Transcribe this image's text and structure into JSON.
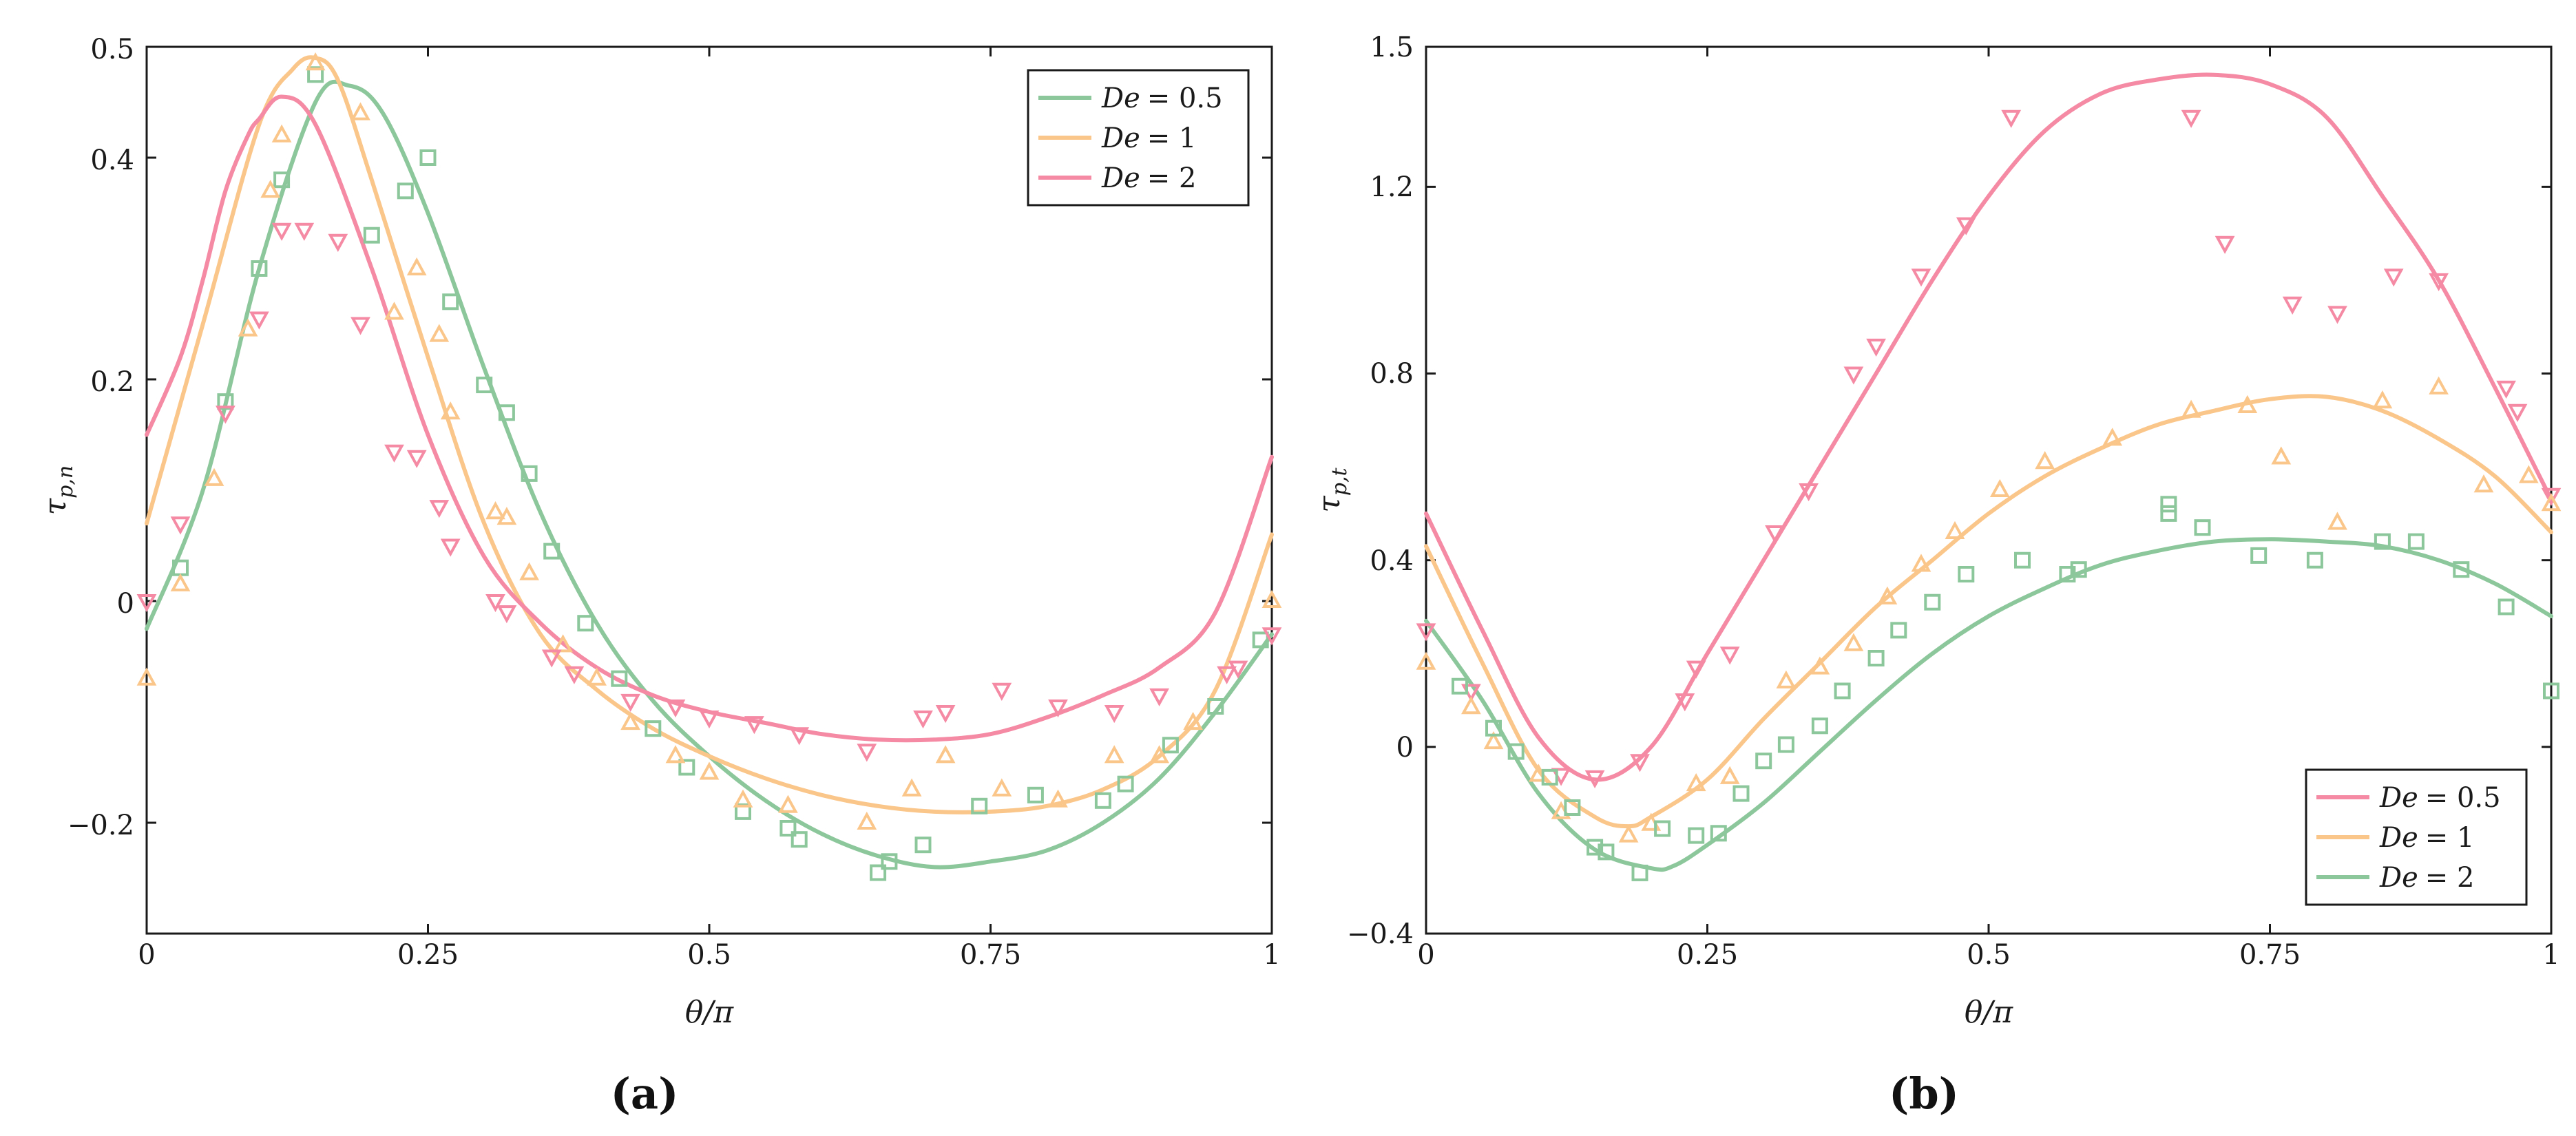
{
  "colors": {
    "green": "#8cc79c",
    "orange": "#fbc68a",
    "pink": "#f48aa4"
  },
  "chart_data": [
    {
      "type": "line",
      "caption": "(a)",
      "xlabel": "θ/π",
      "ylabel": "τ",
      "ylabel_sub": "p,n",
      "xlim": [
        0,
        1
      ],
      "ylim": [
        -0.3,
        0.5
      ],
      "xticks": [
        0,
        0.25,
        0.5,
        0.75,
        1
      ],
      "xtick_labels": [
        "0",
        "0.25",
        "0.5",
        "0.75",
        "1"
      ],
      "yticks": [
        -0.2,
        0,
        0.2,
        0.4,
        0.5
      ],
      "ytick_labels": [
        "−0.2",
        "0",
        "0.2",
        "0.4",
        "0.5"
      ],
      "legend_position": "top-right",
      "series": [
        {
          "name": "De = 0.5",
          "label_de": "De",
          "label_val": "= 0.5",
          "color": "#8cc79c",
          "marker": "square",
          "x": [
            0,
            0.05,
            0.1,
            0.15,
            0.18,
            0.21,
            0.25,
            0.3,
            0.35,
            0.4,
            0.45,
            0.5,
            0.55,
            0.6,
            0.65,
            0.7,
            0.75,
            0.8,
            0.85,
            0.9,
            0.95,
            1
          ],
          "y": [
            -0.025,
            0.1,
            0.3,
            0.45,
            0.465,
            0.44,
            0.35,
            0.21,
            0.08,
            -0.02,
            -0.09,
            -0.14,
            -0.18,
            -0.21,
            -0.23,
            -0.24,
            -0.235,
            -0.225,
            -0.2,
            -0.16,
            -0.1,
            -0.03
          ],
          "mx": [
            0.03,
            0.07,
            0.1,
            0.12,
            0.15,
            0.2,
            0.23,
            0.25,
            0.27,
            0.3,
            0.32,
            0.34,
            0.36,
            0.39,
            0.42,
            0.45,
            0.48,
            0.53,
            0.57,
            0.58,
            0.65,
            0.66,
            0.69,
            0.74,
            0.79,
            0.85,
            0.87,
            0.91,
            0.95,
            0.99
          ],
          "my": [
            0.03,
            0.18,
            0.3,
            0.38,
            0.475,
            0.33,
            0.37,
            0.4,
            0.27,
            0.195,
            0.17,
            0.115,
            0.045,
            -0.02,
            -0.07,
            -0.115,
            -0.15,
            -0.19,
            -0.205,
            -0.215,
            -0.245,
            -0.235,
            -0.22,
            -0.185,
            -0.175,
            -0.18,
            -0.165,
            -0.13,
            -0.095,
            -0.035
          ]
        },
        {
          "name": "De = 1",
          "label_de": "De",
          "label_val": "= 1",
          "color": "#fbc68a",
          "marker": "triangle-up",
          "x": [
            0,
            0.05,
            0.1,
            0.13,
            0.15,
            0.17,
            0.2,
            0.25,
            0.3,
            0.35,
            0.4,
            0.45,
            0.5,
            0.55,
            0.6,
            0.65,
            0.7,
            0.75,
            0.8,
            0.85,
            0.9,
            0.95,
            1
          ],
          "y": [
            0.07,
            0.25,
            0.43,
            0.48,
            0.49,
            0.47,
            0.38,
            0.22,
            0.07,
            -0.03,
            -0.08,
            -0.115,
            -0.14,
            -0.16,
            -0.175,
            -0.185,
            -0.19,
            -0.19,
            -0.185,
            -0.17,
            -0.14,
            -0.08,
            0.06
          ],
          "mx": [
            0,
            0.03,
            0.06,
            0.09,
            0.11,
            0.12,
            0.15,
            0.19,
            0.22,
            0.24,
            0.26,
            0.27,
            0.31,
            0.32,
            0.34,
            0.37,
            0.4,
            0.43,
            0.47,
            0.5,
            0.53,
            0.57,
            0.64,
            0.68,
            0.71,
            0.76,
            0.81,
            0.86,
            0.9,
            0.93,
            1
          ],
          "my": [
            -0.07,
            0.015,
            0.11,
            0.245,
            0.37,
            0.42,
            0.485,
            0.44,
            0.26,
            0.3,
            0.24,
            0.17,
            0.08,
            0.075,
            0.025,
            -0.04,
            -0.07,
            -0.11,
            -0.14,
            -0.155,
            -0.18,
            -0.185,
            -0.2,
            -0.17,
            -0.14,
            -0.17,
            -0.18,
            -0.14,
            -0.14,
            -0.11,
            0
          ]
        },
        {
          "name": "De = 2",
          "label_de": "De",
          "label_val": "= 2",
          "color": "#f48aa4",
          "marker": "triangle-down",
          "x": [
            0,
            0.03,
            0.05,
            0.07,
            0.09,
            0.1,
            0.12,
            0.15,
            0.2,
            0.25,
            0.3,
            0.35,
            0.4,
            0.45,
            0.5,
            0.55,
            0.6,
            0.65,
            0.7,
            0.75,
            0.8,
            0.85,
            0.9,
            0.95,
            1
          ],
          "y": [
            0.15,
            0.22,
            0.29,
            0.37,
            0.42,
            0.435,
            0.455,
            0.43,
            0.3,
            0.15,
            0.04,
            -0.02,
            -0.06,
            -0.085,
            -0.1,
            -0.11,
            -0.12,
            -0.125,
            -0.125,
            -0.12,
            -0.105,
            -0.085,
            -0.06,
            -0.01,
            0.13
          ],
          "mx": [
            0,
            0.03,
            0.07,
            0.1,
            0.12,
            0.14,
            0.17,
            0.19,
            0.22,
            0.24,
            0.26,
            0.27,
            0.31,
            0.32,
            0.36,
            0.38,
            0.43,
            0.47,
            0.5,
            0.54,
            0.58,
            0.64,
            0.69,
            0.71,
            0.76,
            0.81,
            0.86,
            0.9,
            0.96,
            0.97,
            1
          ],
          "my": [
            0,
            0.07,
            0.17,
            0.255,
            0.335,
            0.335,
            0.325,
            0.25,
            0.135,
            0.13,
            0.085,
            0.05,
            0,
            -0.01,
            -0.05,
            -0.065,
            -0.09,
            -0.095,
            -0.105,
            -0.11,
            -0.12,
            -0.135,
            -0.105,
            -0.1,
            -0.08,
            -0.095,
            -0.1,
            -0.085,
            -0.065,
            -0.06,
            -0.03
          ]
        }
      ]
    },
    {
      "type": "line",
      "caption": "(b)",
      "xlabel": "θ/π",
      "ylabel": "τ",
      "ylabel_sub": "p,t",
      "xlim": [
        0,
        1
      ],
      "ylim": [
        -0.4,
        1.5
      ],
      "xticks": [
        0,
        0.25,
        0.5,
        0.75,
        1
      ],
      "xtick_labels": [
        "0",
        "0.25",
        "0.5",
        "0.75",
        "1"
      ],
      "yticks": [
        -0.4,
        0,
        0.4,
        0.8,
        1.2,
        1.5
      ],
      "ytick_labels": [
        "−0.4",
        "0",
        "0.4",
        "0.8",
        "1.2",
        "1.5"
      ],
      "legend_position": "bottom-right",
      "series": [
        {
          "name": "De = 0.5",
          "label_de": "De",
          "label_val": "= 0.5",
          "color": "#f48aa4",
          "marker": "triangle-down",
          "x": [
            0,
            0.05,
            0.1,
            0.15,
            0.2,
            0.25,
            0.3,
            0.35,
            0.4,
            0.45,
            0.5,
            0.55,
            0.6,
            0.65,
            0.7,
            0.75,
            0.8,
            0.85,
            0.9,
            0.95,
            1
          ],
          "y": [
            0.5,
            0.25,
            0.02,
            -0.07,
            0,
            0.2,
            0.4,
            0.6,
            0.8,
            1.0,
            1.18,
            1.32,
            1.4,
            1.43,
            1.44,
            1.42,
            1.35,
            1.18,
            1.0,
            0.77,
            0.53
          ],
          "mx": [
            0,
            0.04,
            0.12,
            0.15,
            0.19,
            0.23,
            0.24,
            0.27,
            0.31,
            0.34,
            0.38,
            0.4,
            0.44,
            0.48,
            0.52,
            0.68,
            0.71,
            0.77,
            0.81,
            0.86,
            0.9,
            0.96,
            0.97,
            1
          ],
          "my": [
            0.25,
            0.12,
            -0.06,
            -0.065,
            -0.03,
            0.1,
            0.17,
            0.2,
            0.46,
            0.55,
            0.8,
            0.86,
            1.01,
            1.12,
            1.35,
            1.35,
            1.08,
            0.95,
            0.93,
            1.01,
            1.0,
            0.77,
            0.72,
            0.54
          ]
        },
        {
          "name": "De = 1",
          "label_de": "De",
          "label_val": "= 1",
          "color": "#fbc68a",
          "marker": "triangle-up",
          "x": [
            0,
            0.05,
            0.1,
            0.15,
            0.18,
            0.2,
            0.25,
            0.3,
            0.35,
            0.4,
            0.45,
            0.5,
            0.55,
            0.6,
            0.65,
            0.7,
            0.75,
            0.8,
            0.85,
            0.9,
            0.95,
            1
          ],
          "y": [
            0.43,
            0.18,
            -0.05,
            -0.15,
            -0.17,
            -0.15,
            -0.07,
            0.06,
            0.18,
            0.3,
            0.4,
            0.5,
            0.58,
            0.64,
            0.69,
            0.72,
            0.745,
            0.75,
            0.72,
            0.66,
            0.58,
            0.46
          ],
          "mx": [
            0,
            0.04,
            0.06,
            0.1,
            0.12,
            0.18,
            0.2,
            0.24,
            0.27,
            0.32,
            0.35,
            0.38,
            0.41,
            0.44,
            0.47,
            0.51,
            0.55,
            0.61,
            0.68,
            0.73,
            0.76,
            0.81,
            0.85,
            0.9,
            0.94,
            0.98,
            1
          ],
          "my": [
            0.18,
            0.085,
            0.01,
            -0.06,
            -0.14,
            -0.19,
            -0.165,
            -0.08,
            -0.065,
            0.14,
            0.17,
            0.22,
            0.32,
            0.39,
            0.46,
            0.55,
            0.61,
            0.66,
            0.72,
            0.73,
            0.62,
            0.48,
            0.74,
            0.77,
            0.56,
            0.58,
            0.52
          ]
        },
        {
          "name": "De = 2",
          "label_de": "De",
          "label_val": "= 2",
          "color": "#8cc79c",
          "marker": "square",
          "x": [
            0,
            0.05,
            0.1,
            0.15,
            0.2,
            0.22,
            0.25,
            0.3,
            0.35,
            0.4,
            0.45,
            0.5,
            0.55,
            0.6,
            0.65,
            0.7,
            0.75,
            0.8,
            0.85,
            0.9,
            0.95,
            1
          ],
          "y": [
            0.27,
            0.1,
            -0.1,
            -0.22,
            -0.26,
            -0.255,
            -0.21,
            -0.12,
            -0.01,
            0.1,
            0.2,
            0.28,
            0.34,
            0.39,
            0.42,
            0.44,
            0.445,
            0.44,
            0.43,
            0.4,
            0.35,
            0.28
          ],
          "mx": [
            0.03,
            0.06,
            0.08,
            0.11,
            0.13,
            0.15,
            0.16,
            0.19,
            0.21,
            0.24,
            0.26,
            0.28,
            0.3,
            0.32,
            0.35,
            0.37,
            0.4,
            0.42,
            0.45,
            0.48,
            0.53,
            0.57,
            0.58,
            0.66,
            0.66,
            0.69,
            0.74,
            0.79,
            0.85,
            0.88,
            0.92,
            0.96,
            1
          ],
          "my": [
            0.13,
            0.04,
            -0.01,
            -0.065,
            -0.13,
            -0.215,
            -0.225,
            -0.27,
            -0.175,
            -0.19,
            -0.185,
            -0.1,
            -0.03,
            0.005,
            0.045,
            0.12,
            0.19,
            0.25,
            0.31,
            0.37,
            0.4,
            0.37,
            0.38,
            0.52,
            0.5,
            0.47,
            0.41,
            0.4,
            0.44,
            0.44,
            0.38,
            0.3,
            0.12
          ]
        }
      ]
    }
  ]
}
